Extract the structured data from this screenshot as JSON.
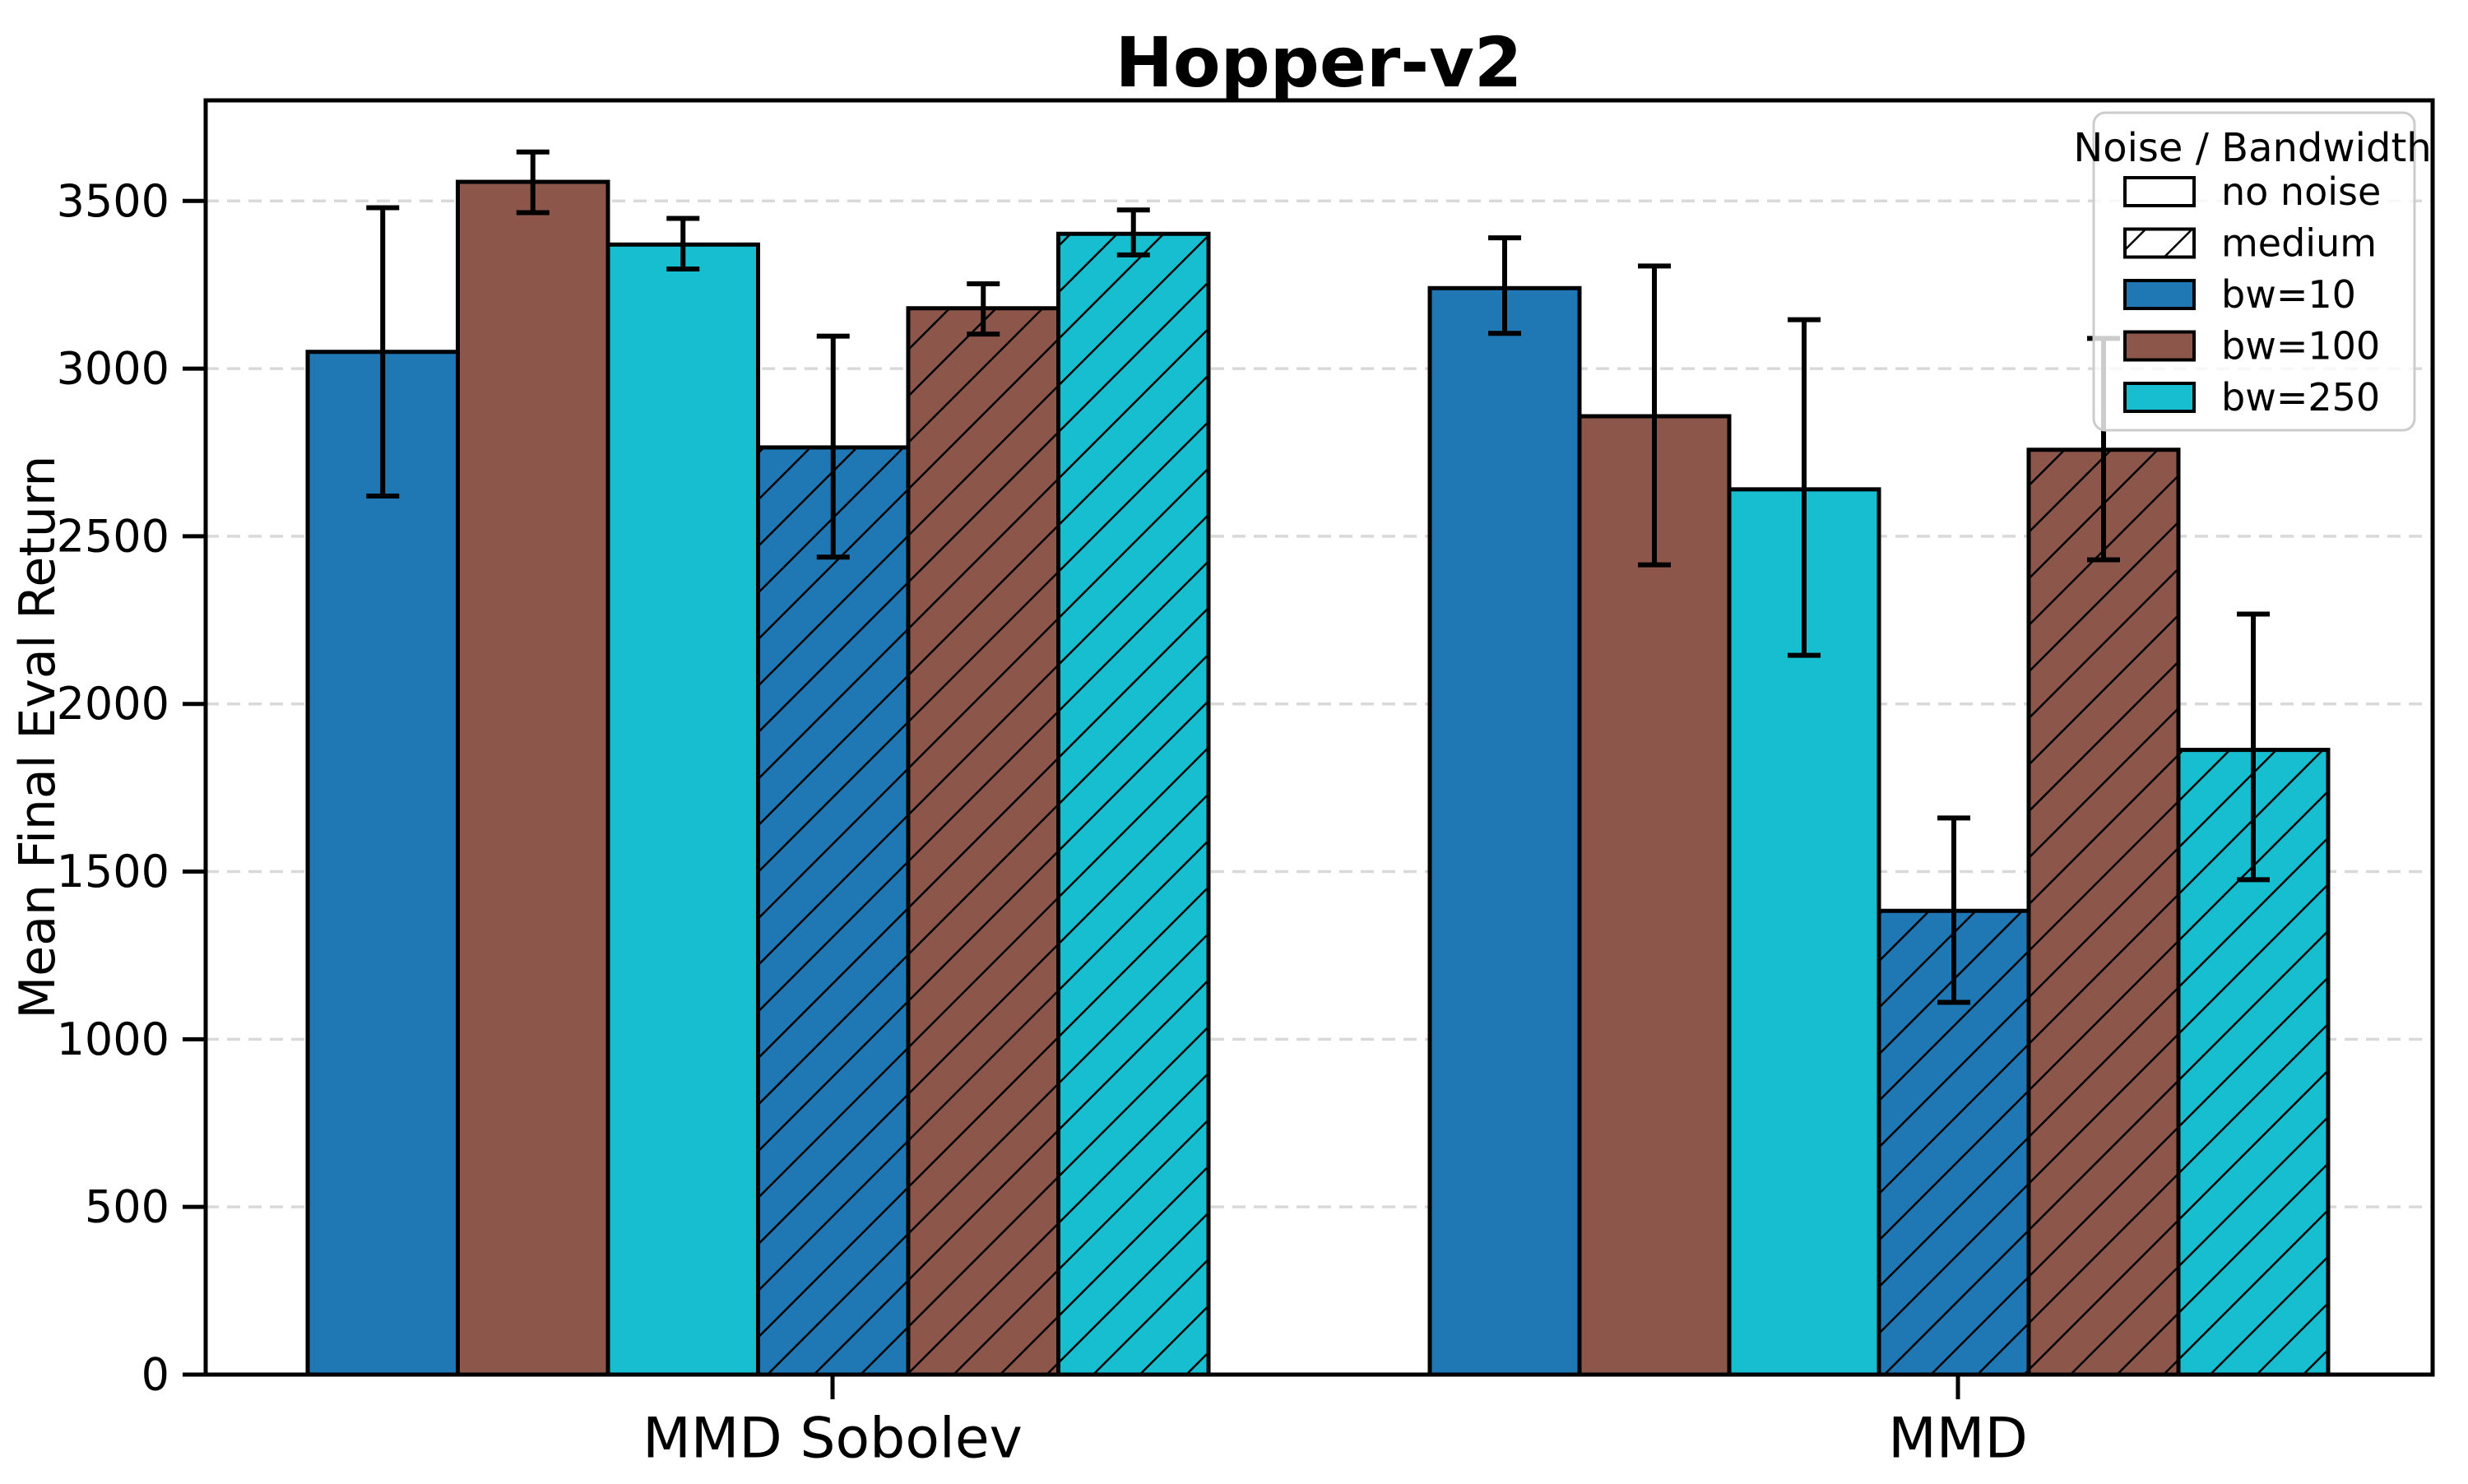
{
  "chart_data": {
    "type": "bar",
    "title": "Hopper-v2",
    "xlabel": "",
    "ylabel": "Mean Final Eval Return",
    "ylim": [
      0,
      3800
    ],
    "yticks": [
      0,
      500,
      1000,
      1500,
      2000,
      2500,
      3000,
      3500
    ],
    "grid": "horizontal-dashed",
    "grid_color": "#d9d9d9",
    "bar_edge_color": "#000000",
    "error_bar_color": "#000000",
    "categories": [
      "MMD Sobolev",
      "MMD"
    ],
    "series": [
      {
        "name": "no noise / bw=10",
        "color": "#1f77b4",
        "hatch": false,
        "values": [
          3050,
          3240
        ],
        "err_low": [
          2620,
          3105
        ],
        "err_high": [
          3480,
          3390
        ]
      },
      {
        "name": "no noise / bw=100",
        "color": "#8c564b",
        "hatch": false,
        "values": [
          3557,
          2858
        ],
        "err_low": [
          3465,
          2415
        ],
        "err_high": [
          3646,
          3306
        ]
      },
      {
        "name": "no noise / bw=250",
        "color": "#17becf",
        "hatch": false,
        "values": [
          3370,
          2640
        ],
        "err_low": [
          3297,
          2145
        ],
        "err_high": [
          3448,
          3146
        ]
      },
      {
        "name": "medium / bw=10",
        "color": "#1f77b4",
        "hatch": true,
        "values": [
          2765,
          1383
        ],
        "err_low": [
          2438,
          1110
        ],
        "err_high": [
          3097,
          1660
        ]
      },
      {
        "name": "medium / bw=100",
        "color": "#8c564b",
        "hatch": true,
        "values": [
          3180,
          2758
        ],
        "err_low": [
          3103,
          2430
        ],
        "err_high": [
          3253,
          3090
        ]
      },
      {
        "name": "medium / bw=250",
        "color": "#17becf",
        "hatch": true,
        "values": [
          3402,
          1863
        ],
        "err_low": [
          3339,
          1476
        ],
        "err_high": [
          3473,
          2268
        ]
      }
    ],
    "legend": {
      "title": "Noise / Bandwidth",
      "position": "upper-right",
      "border_color": "#cccccc",
      "entries": [
        {
          "label": "no noise",
          "fill": "#ffffff",
          "hatch": false
        },
        {
          "label": "medium",
          "fill": "#ffffff",
          "hatch": true
        },
        {
          "label": "bw=10",
          "fill": "#1f77b4",
          "hatch": false
        },
        {
          "label": "bw=100",
          "fill": "#8c564b",
          "hatch": false
        },
        {
          "label": "bw=250",
          "fill": "#17becf",
          "hatch": false
        }
      ]
    }
  }
}
